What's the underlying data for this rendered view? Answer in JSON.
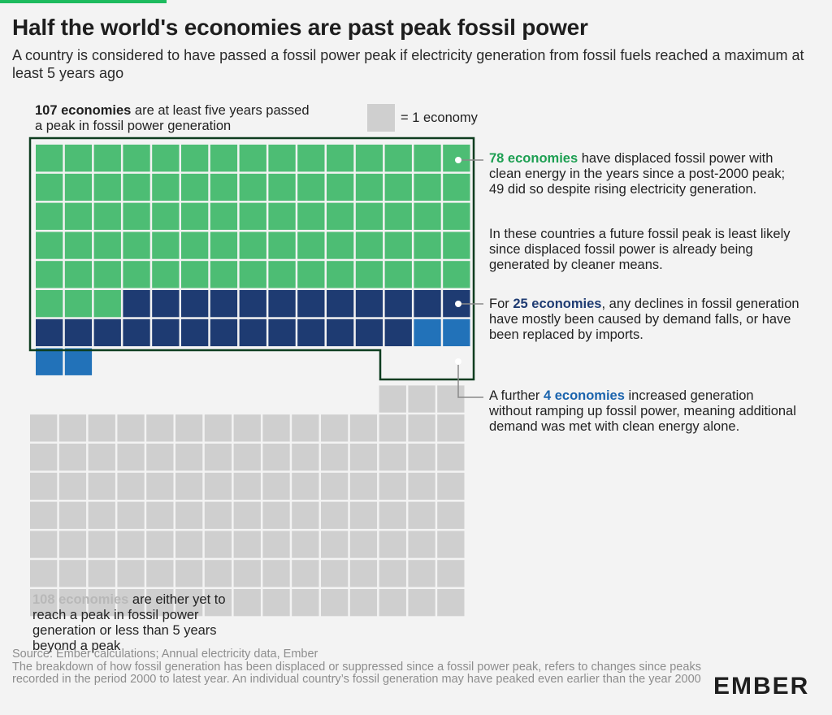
{
  "title": "Half the world's economies are past peak fossil power",
  "subtitle": "A country is considered to have passed a fossil power peak if electricity generation from fossil fuels reached a maximum at least 5 years ago",
  "legend": {
    "label": "= 1 economy"
  },
  "annotations": {
    "past_peak": {
      "bold": "107 economies",
      "rest": " are at least five years passed a peak in fossil power generation"
    },
    "clean_displaced": {
      "bold": "78 economies",
      "rest": " have displaced fossil power with clean energy in the years since a post-2000 peak; 49 did so despite rising electricity generation."
    },
    "clean_displaced_note": "In these countries a future fossil peak is least likely since displaced fossil power is already being generated by cleaner means.",
    "declines": {
      "pre": "For ",
      "bold": "25 economies",
      "rest": ", any declines in fossil generation have mostly been caused by demand falls, or have been replaced by imports."
    },
    "increased": {
      "pre": "A further ",
      "bold": "4 economies",
      "rest": " increased generation without ramping up fossil power, meaning additional demand was met with clean energy alone."
    },
    "not_past": {
      "bold": "108 economies",
      "rest": " are either yet to reach a peak in fossil power generation or less than 5 years beyond a peak"
    }
  },
  "footer": {
    "source": "Source: Ember calculations; Annual electricity data, Ember",
    "note": "The breakdown of how fossil generation has been displaced or suppressed since a fossil power peak, refers to changes since peaks recorded in the period 2000 to latest year. An individual country’s fossil generation may have peaked even earlier than the year 2000"
  },
  "logo": "EMBER",
  "chart_data": {
    "type": "waffle",
    "unit": "1 economy",
    "columns": 15,
    "categories": [
      {
        "name": "Displaced fossil power with clean energy",
        "value": 78,
        "color": "#4dbd74"
      },
      {
        "name": "Declines caused by demand falls or imports",
        "value": 25,
        "color": "#1e3b72"
      },
      {
        "name": "Increased generation without ramping up fossil power",
        "value": 4,
        "color": "#2272b9"
      },
      {
        "name": "Yet to peak or less than 5 years beyond a peak",
        "value": 108,
        "color": "#cfcfcf"
      }
    ],
    "groups": [
      {
        "label": "107 economies",
        "value": 107
      },
      {
        "label": "108 economies",
        "value": 108
      }
    ]
  }
}
